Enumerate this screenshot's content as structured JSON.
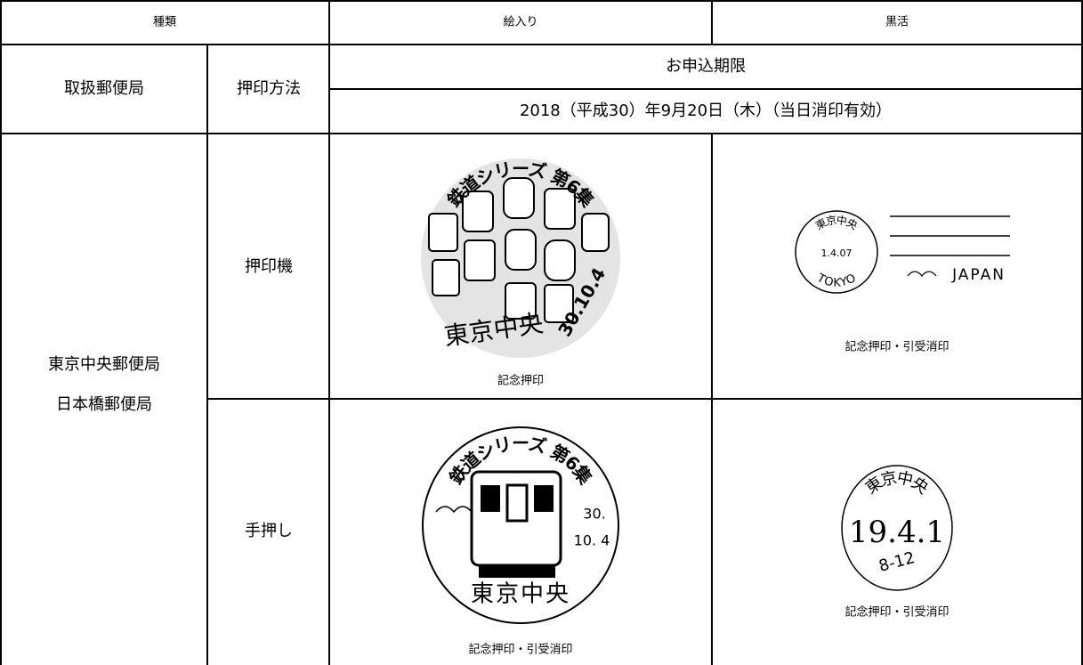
{
  "table": {
    "header": [
      "種類",
      "絵入り",
      "黒活"
    ],
    "office_label": "取扱郵便局",
    "method_label": "押印方法",
    "deadline_label": "お申込期限",
    "deadline": "2018（平成30）年9月20日（木）（当日消印有効）",
    "offices": [
      "東京中央郵便局",
      "日本橋郵便局"
    ],
    "rows": [
      {
        "method": "押印機",
        "pictorial": {
          "caption": "記念押印",
          "arc": "鉄道シリーズ 第6集",
          "place": "東京中央",
          "date": "30.10.4"
        },
        "black": {
          "caption": "記念押印・引受消印",
          "place": "東京中央",
          "date": "1.4.07",
          "city": "TOKYO",
          "country": "JAPAN"
        }
      },
      {
        "method": "手押し",
        "pictorial": {
          "caption": "記念押印・引受消印",
          "arc": "鉄道シリーズ 第6集",
          "year": "30.",
          "date": "10. 4",
          "place": "東京中央"
        },
        "black": {
          "caption": "記念押印・引受消印",
          "place": "東京中央",
          "date": "19.4.1",
          "time": "8-12"
        }
      }
    ]
  }
}
